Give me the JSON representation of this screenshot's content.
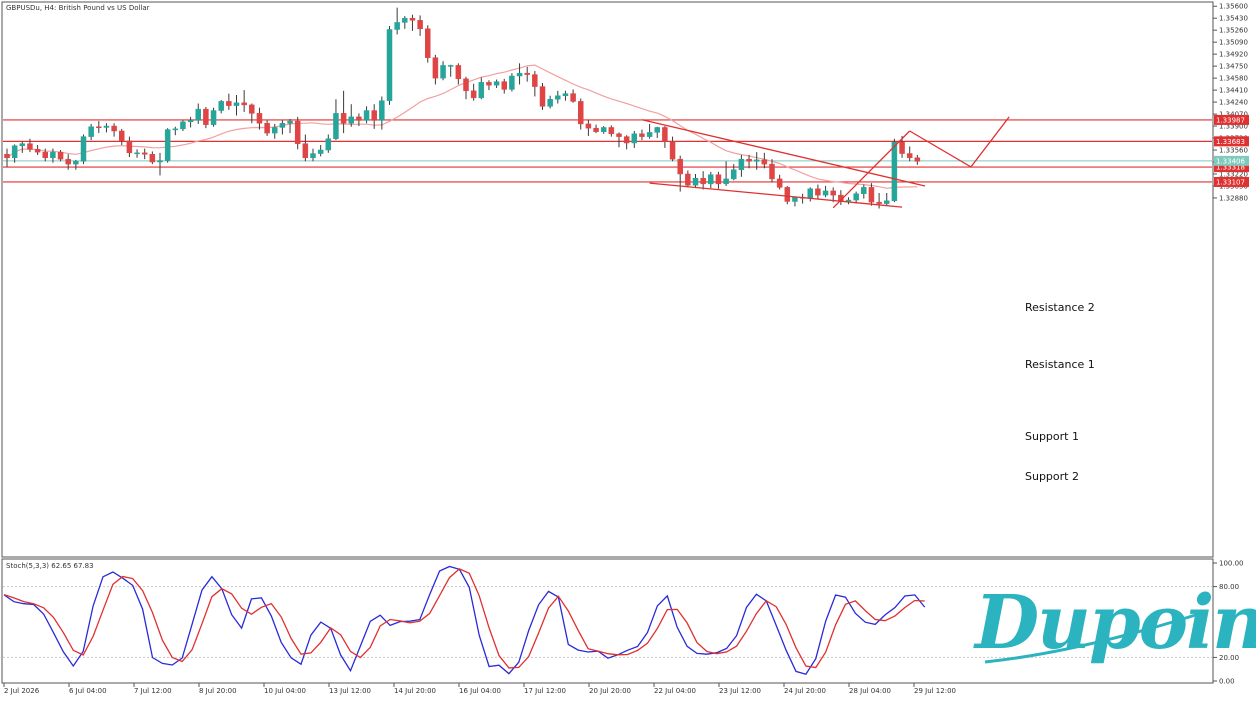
{
  "chart_data": [
    {
      "type": "candlestick",
      "title": "GBPUSDu, H4:  British Pound vs US Dollar",
      "ylim": [
        1.278,
        1.3566
      ],
      "y_ticks": [
        "1.35600",
        "1.35430",
        "1.35260",
        "1.35090",
        "1.34920",
        "1.34750",
        "1.34580",
        "1.34410",
        "1.34240",
        "1.34070",
        "1.33900",
        "1.33730",
        "1.33560",
        "1.33390",
        "1.33220",
        "1.33050",
        "1.32880"
      ],
      "x_ticks": [
        "2 Jul 2026",
        "6 Jul 04:00",
        "7 Jul 12:00",
        "8 Jul 20:00",
        "10 Jul 04:00",
        "13 Jul 12:00",
        "14 Jul 20:00",
        "16 Jul 04:00",
        "17 Jul 12:00",
        "20 Jul 20:00",
        "22 Jul 04:00",
        "23 Jul 12:00",
        "24 Jul 20:00",
        "28 Jul 04:00",
        "29 Jul 12:00"
      ],
      "horizontal_levels": [
        {
          "name": "Resistance 2",
          "value": 1.33987,
          "tag": "1.33987",
          "color": "#e03030"
        },
        {
          "name": "Resistance 1",
          "value": 1.33683,
          "tag": "1.33683",
          "color": "#e03030"
        },
        {
          "name": "Support 1",
          "value": 1.33318,
          "tag": "1.33318",
          "color": "#e03030"
        },
        {
          "name": "Support 2",
          "value": 1.33107,
          "tag": "1.33107",
          "color": "#e03030"
        }
      ],
      "bid_level": {
        "value": 1.33406,
        "tag": "1.33406",
        "color": "#7fc9bd"
      },
      "ohlc": [
        [
          1.335,
          1.3358,
          1.3332,
          1.3345
        ],
        [
          1.3345,
          1.3364,
          1.3338,
          1.3362
        ],
        [
          1.3362,
          1.3368,
          1.3352,
          1.3365
        ],
        [
          1.3365,
          1.3372,
          1.3353,
          1.3357
        ],
        [
          1.3357,
          1.3363,
          1.3349,
          1.3353
        ],
        [
          1.3353,
          1.3358,
          1.334,
          1.3345
        ],
        [
          1.3345,
          1.3358,
          1.3338,
          1.3353
        ],
        [
          1.3353,
          1.3356,
          1.334,
          1.3343
        ],
        [
          1.3343,
          1.335,
          1.3328,
          1.3336
        ],
        [
          1.3336,
          1.3342,
          1.3328,
          1.334
        ],
        [
          1.334,
          1.3378,
          1.3336,
          1.3375
        ],
        [
          1.3375,
          1.3393,
          1.337,
          1.3389
        ],
        [
          1.3389,
          1.3397,
          1.338,
          1.3388
        ],
        [
          1.3388,
          1.3394,
          1.3381,
          1.339
        ],
        [
          1.339,
          1.3394,
          1.3375,
          1.3383
        ],
        [
          1.3383,
          1.3386,
          1.3363,
          1.3369
        ],
        [
          1.3369,
          1.3375,
          1.3346,
          1.3352
        ],
        [
          1.3352,
          1.3357,
          1.3345,
          1.3352
        ],
        [
          1.3352,
          1.3358,
          1.3343,
          1.335
        ],
        [
          1.335,
          1.3354,
          1.3336,
          1.3339
        ],
        [
          1.3339,
          1.3352,
          1.332,
          1.3341
        ],
        [
          1.3341,
          1.3387,
          1.3338,
          1.3385
        ],
        [
          1.3385,
          1.3389,
          1.3377,
          1.3386
        ],
        [
          1.3386,
          1.3398,
          1.3383,
          1.3396
        ],
        [
          1.3396,
          1.3403,
          1.3388,
          1.3398
        ],
        [
          1.3398,
          1.3422,
          1.3393,
          1.3414
        ],
        [
          1.3414,
          1.3417,
          1.3387,
          1.3392
        ],
        [
          1.3392,
          1.3416,
          1.3389,
          1.3412
        ],
        [
          1.3412,
          1.3427,
          1.3408,
          1.3425
        ],
        [
          1.3425,
          1.3436,
          1.3413,
          1.3419
        ],
        [
          1.3419,
          1.3434,
          1.3405,
          1.3423
        ],
        [
          1.3423,
          1.3441,
          1.341,
          1.342
        ],
        [
          1.342,
          1.3422,
          1.3394,
          1.3408
        ],
        [
          1.3408,
          1.3416,
          1.3385,
          1.3394
        ],
        [
          1.3394,
          1.3398,
          1.3376,
          1.338
        ],
        [
          1.338,
          1.3393,
          1.3372,
          1.3388
        ],
        [
          1.3388,
          1.3398,
          1.3378,
          1.3394
        ],
        [
          1.3394,
          1.34,
          1.338,
          1.3397
        ],
        [
          1.3397,
          1.3403,
          1.3357,
          1.3365
        ],
        [
          1.3365,
          1.3378,
          1.334,
          1.3345
        ],
        [
          1.3345,
          1.3358,
          1.334,
          1.3351
        ],
        [
          1.3351,
          1.3363,
          1.3347,
          1.3356
        ],
        [
          1.3356,
          1.3378,
          1.3352,
          1.3372
        ],
        [
          1.3372,
          1.3428,
          1.337,
          1.3408
        ],
        [
          1.3408,
          1.344,
          1.338,
          1.3394
        ],
        [
          1.3394,
          1.3421,
          1.3389,
          1.3403
        ],
        [
          1.3403,
          1.3408,
          1.339,
          1.3398
        ],
        [
          1.3398,
          1.3418,
          1.3394,
          1.3412
        ],
        [
          1.3412,
          1.3421,
          1.3386,
          1.3398
        ],
        [
          1.3398,
          1.3432,
          1.3385,
          1.3426
        ],
        [
          1.3426,
          1.3532,
          1.342,
          1.3527
        ],
        [
          1.3527,
          1.3558,
          1.352,
          1.3537
        ],
        [
          1.3537,
          1.3546,
          1.3528,
          1.3543
        ],
        [
          1.3543,
          1.3548,
          1.3525,
          1.354
        ],
        [
          1.354,
          1.3547,
          1.3518,
          1.3528
        ],
        [
          1.3528,
          1.3533,
          1.348,
          1.3487
        ],
        [
          1.3487,
          1.3491,
          1.3449,
          1.3458
        ],
        [
          1.3458,
          1.3482,
          1.3455,
          1.3476
        ],
        [
          1.3476,
          1.3477,
          1.346,
          1.3476
        ],
        [
          1.3476,
          1.3479,
          1.3449,
          1.3457
        ],
        [
          1.3457,
          1.346,
          1.3428,
          1.344
        ],
        [
          1.344,
          1.345,
          1.3426,
          1.343
        ],
        [
          1.343,
          1.3459,
          1.3428,
          1.3452
        ],
        [
          1.3452,
          1.3455,
          1.3441,
          1.3448
        ],
        [
          1.3448,
          1.3456,
          1.3444,
          1.3453
        ],
        [
          1.3453,
          1.3457,
          1.3436,
          1.3442
        ],
        [
          1.3442,
          1.3465,
          1.3439,
          1.3461
        ],
        [
          1.3461,
          1.3479,
          1.3449,
          1.3465
        ],
        [
          1.3465,
          1.3474,
          1.3453,
          1.3463
        ],
        [
          1.3463,
          1.3468,
          1.3432,
          1.3446
        ],
        [
          1.3446,
          1.3451,
          1.3413,
          1.3418
        ],
        [
          1.3418,
          1.3433,
          1.3415,
          1.3428
        ],
        [
          1.3428,
          1.344,
          1.3422,
          1.3433
        ],
        [
          1.3433,
          1.344,
          1.3426,
          1.3436
        ],
        [
          1.3436,
          1.3442,
          1.3423,
          1.3425
        ],
        [
          1.3425,
          1.3429,
          1.3385,
          1.3393
        ],
        [
          1.3393,
          1.3399,
          1.3376,
          1.3387
        ],
        [
          1.3387,
          1.3392,
          1.338,
          1.3382
        ],
        [
          1.3382,
          1.339,
          1.3379,
          1.3388
        ],
        [
          1.3388,
          1.3391,
          1.3375,
          1.3379
        ],
        [
          1.3379,
          1.3381,
          1.336,
          1.3375
        ],
        [
          1.3375,
          1.3377,
          1.3357,
          1.3366
        ],
        [
          1.3366,
          1.3383,
          1.3359,
          1.3379
        ],
        [
          1.3379,
          1.3385,
          1.337,
          1.3375
        ],
        [
          1.3375,
          1.3393,
          1.3372,
          1.3381
        ],
        [
          1.3381,
          1.3389,
          1.3373,
          1.3388
        ],
        [
          1.3388,
          1.339,
          1.3359,
          1.3368
        ],
        [
          1.3368,
          1.3375,
          1.334,
          1.3343
        ],
        [
          1.3343,
          1.3348,
          1.3297,
          1.3322
        ],
        [
          1.3322,
          1.3327,
          1.3303,
          1.3306
        ],
        [
          1.3306,
          1.3322,
          1.3303,
          1.3316
        ],
        [
          1.3316,
          1.3326,
          1.33,
          1.3308
        ],
        [
          1.3308,
          1.3325,
          1.3302,
          1.3321
        ],
        [
          1.3321,
          1.3325,
          1.3301,
          1.3308
        ],
        [
          1.3308,
          1.334,
          1.3305,
          1.3315
        ],
        [
          1.3315,
          1.3336,
          1.3313,
          1.3328
        ],
        [
          1.3328,
          1.3349,
          1.3318,
          1.3343
        ],
        [
          1.3343,
          1.3349,
          1.333,
          1.334
        ],
        [
          1.334,
          1.3353,
          1.3328,
          1.3342
        ],
        [
          1.3342,
          1.3352,
          1.333,
          1.3336
        ],
        [
          1.3336,
          1.3343,
          1.331,
          1.3315
        ],
        [
          1.3315,
          1.3321,
          1.33,
          1.3303
        ],
        [
          1.3303,
          1.3305,
          1.3279,
          1.3283
        ],
        [
          1.3283,
          1.329,
          1.3276,
          1.3289
        ],
        [
          1.3289,
          1.3294,
          1.328,
          1.3288
        ],
        [
          1.3288,
          1.3303,
          1.3283,
          1.3301
        ],
        [
          1.3301,
          1.3307,
          1.3286,
          1.3292
        ],
        [
          1.3292,
          1.3305,
          1.3289,
          1.3298
        ],
        [
          1.3298,
          1.3303,
          1.3282,
          1.3292
        ],
        [
          1.3292,
          1.3299,
          1.3278,
          1.3284
        ],
        [
          1.3284,
          1.3289,
          1.3279,
          1.3285
        ],
        [
          1.3285,
          1.3297,
          1.328,
          1.3294
        ],
        [
          1.3294,
          1.3307,
          1.3287,
          1.3303
        ],
        [
          1.3303,
          1.3309,
          1.3277,
          1.3282
        ],
        [
          1.3282,
          1.3295,
          1.3273,
          1.328
        ],
        [
          1.328,
          1.3295,
          1.3278,
          1.3284
        ],
        [
          1.3284,
          1.3372,
          1.3282,
          1.3367
        ],
        [
          1.3367,
          1.3376,
          1.3345,
          1.3351
        ],
        [
          1.3351,
          1.3361,
          1.334,
          1.3345
        ],
        [
          1.3345,
          1.3349,
          1.3335,
          1.334
        ]
      ],
      "up_color": "#26a69a",
      "down_color": "#e04545",
      "ma_color": "#f2a0a0",
      "annotations": {
        "projection": [
          [
            118,
            1.3383
          ],
          [
            126,
            1.3332
          ],
          [
            131,
            1.3403
          ]
        ],
        "wedge_upper": [
          [
            83,
            1.3399
          ],
          [
            120,
            1.3305
          ]
        ],
        "wedge_lower": [
          [
            84,
            1.3309
          ],
          [
            117,
            1.3275
          ]
        ],
        "impulse": [
          [
            108,
            1.3274
          ],
          [
            118,
            1.3383
          ]
        ]
      }
    },
    {
      "type": "line",
      "title": "Stoch(5,3,3) 62.65 67.83",
      "ylim": [
        0,
        100
      ],
      "y_ticks": [
        "100.00",
        "80.00",
        "20.00",
        "0.00"
      ],
      "levels": [
        80,
        20
      ],
      "series": [
        {
          "color": "#2a2ad8",
          "values": [
            73.0,
            67.2,
            65.5,
            64.8,
            56.8,
            40.9,
            24.7,
            12.7,
            25.1,
            63.6,
            88.3,
            92.4,
            87.1,
            81.0,
            60.9,
            19.9,
            14.9,
            13.6,
            19.5,
            48.1,
            77.0,
            88.4,
            78.2,
            56.2,
            44.8,
            69.6,
            70.5,
            55.2,
            32.8,
            19.7,
            14.2,
            38.9,
            49.9,
            44.7,
            22.1,
            8.7,
            29.7,
            50.6,
            55.8,
            47.1,
            50.3,
            50.7,
            52.0,
            73.3,
            93.2,
            97.0,
            94.7,
            79.3,
            38.8,
            12.3,
            13.4,
            6.2,
            15.9,
            42.8,
            64.6,
            75.9,
            71.1,
            31.0,
            26.2,
            24.6,
            25.3,
            19.3,
            22.2,
            26.1,
            29.2,
            41.1,
            63.7,
            72.1,
            45.5,
            29.4,
            23.4,
            22.7,
            24.0,
            27.6,
            38.5,
            62.5,
            73.6,
            67.9,
            47.1,
            26.1,
            8.1,
            5.8,
            19.0,
            50.8,
            72.9,
            71.0,
            57.4,
            49.8,
            48.0,
            56.0,
            62.3,
            72.0,
            73.0,
            62.6
          ]
        },
        {
          "color": "#e03030",
          "values": [
            73.2,
            70.4,
            67.3,
            65.5,
            62.0,
            53.9,
            40.9,
            26.0,
            22.0,
            37.8,
            60.0,
            81.9,
            88.6,
            86.8,
            76.6,
            58.0,
            34.6,
            19.9,
            16.5,
            26.5,
            48.6,
            71.4,
            78.2,
            73.8,
            61.7,
            56.6,
            62.5,
            65.6,
            54.3,
            36.1,
            22.7,
            23.8,
            32.8,
            45.0,
            39.2,
            25.1,
            19.9,
            28.6,
            46.7,
            52.1,
            50.9,
            49.2,
            50.8,
            57.3,
            72.4,
            87.6,
            95.0,
            91.3,
            72.2,
            45.0,
            21.6,
            11.1,
            11.5,
            20.8,
            40.7,
            61.8,
            71.8,
            59.3,
            42.9,
            27.4,
            25.3,
            23.1,
            22.2,
            22.5,
            25.9,
            32.0,
            44.6,
            60.5,
            60.7,
            49.2,
            32.5,
            25.0,
            23.1,
            24.7,
            29.6,
            42.2,
            57.1,
            68.0,
            63.0,
            48.0,
            28.1,
            12.7,
            11.4,
            24.5,
            47.6,
            65.0,
            67.9,
            59.7,
            52.1,
            51.1,
            55.2,
            62.3,
            68.2,
            67.8
          ]
        }
      ]
    }
  ],
  "levels_text": {
    "resistance_2": "Resistance 2",
    "resistance_1": "Resistance 1",
    "support_1": "Support 1",
    "support_2": "Support 2"
  },
  "brand": {
    "logo_text": "Dupoin",
    "color": "#2bb3c0"
  }
}
